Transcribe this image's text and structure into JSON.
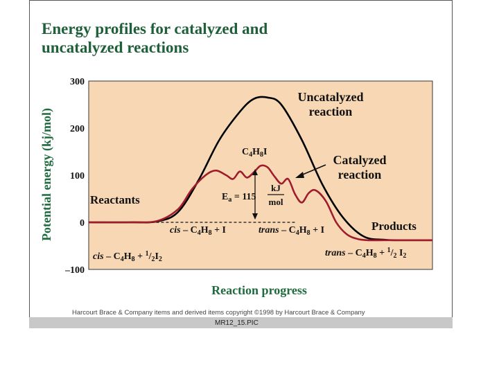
{
  "page": {
    "title_line1": "Energy profiles for catalyzed and",
    "title_line2": "uncatalyzed reactions",
    "credit": "Harcourt Brace & Company items and derived items copyright ©1998 by Harcourt Brace & Company",
    "caption": "MR12_15.PIC"
  },
  "colors": {
    "plot_bg": "#f8d8b4",
    "title": "#1f5f3a",
    "uncatalyzed": "#000000",
    "catalyzed": "#a01c2c"
  },
  "chart_data": {
    "type": "line",
    "title": "Energy profiles for catalyzed and uncatalyzed reactions",
    "xlabel": "Reaction progress",
    "ylabel": "Potential energy (kj/mol)",
    "ylim": [
      -100,
      300
    ],
    "xlim": [
      0,
      100
    ],
    "yticks": [
      {
        "value": 300,
        "label": "300"
      },
      {
        "value": 200,
        "label": "200"
      },
      {
        "value": 100,
        "label": "100"
      },
      {
        "value": 0,
        "label": "0"
      },
      {
        "value": -100,
        "label": "–100"
      }
    ],
    "series": [
      {
        "name": "Uncatalyzed reaction",
        "x": [
          0,
          12,
          20,
          26,
          32,
          38,
          44,
          48,
          52,
          56,
          62,
          68,
          74,
          80,
          86,
          92,
          100
        ],
        "y": [
          0,
          0,
          2,
          22,
          90,
          175,
          235,
          262,
          265,
          250,
          175,
          80,
          10,
          -30,
          -37,
          -38,
          -38
        ]
      },
      {
        "name": "Catalyzed reaction",
        "x": [
          0,
          12,
          20,
          26,
          30,
          34,
          37,
          40,
          42,
          44,
          46,
          48,
          50,
          52,
          54,
          56,
          58,
          60,
          62,
          64,
          66,
          69,
          72,
          75,
          78,
          81,
          86,
          92,
          100
        ],
        "y": [
          0,
          0,
          3,
          28,
          70,
          100,
          110,
          100,
          92,
          108,
          95,
          106,
          120,
          117,
          98,
          82,
          92,
          60,
          42,
          62,
          68,
          45,
          0,
          -25,
          -35,
          -38,
          -38,
          -38,
          -38
        ]
      }
    ],
    "annotations": {
      "uncatalyzed_line1": "Uncatalyzed",
      "uncatalyzed_line2": "reaction",
      "catalyzed_line1": "Catalyzed",
      "catalyzed_line2": "reaction",
      "intermediate": "C4H8I",
      "reactants": "Reactants",
      "products": "Products",
      "cis_intermediate": "cis – C4H8 + I",
      "trans_intermediate": "trans – C4H8 + I",
      "cis_reactant": "cis – C4H8 + 1/2I2",
      "trans_product": "trans – C4H8 + 1/2 I2",
      "ea_label": "Ea = 115",
      "ea_value_kj_mol": 115,
      "ea_unit_num": "kJ",
      "ea_unit_den": "mol"
    }
  }
}
